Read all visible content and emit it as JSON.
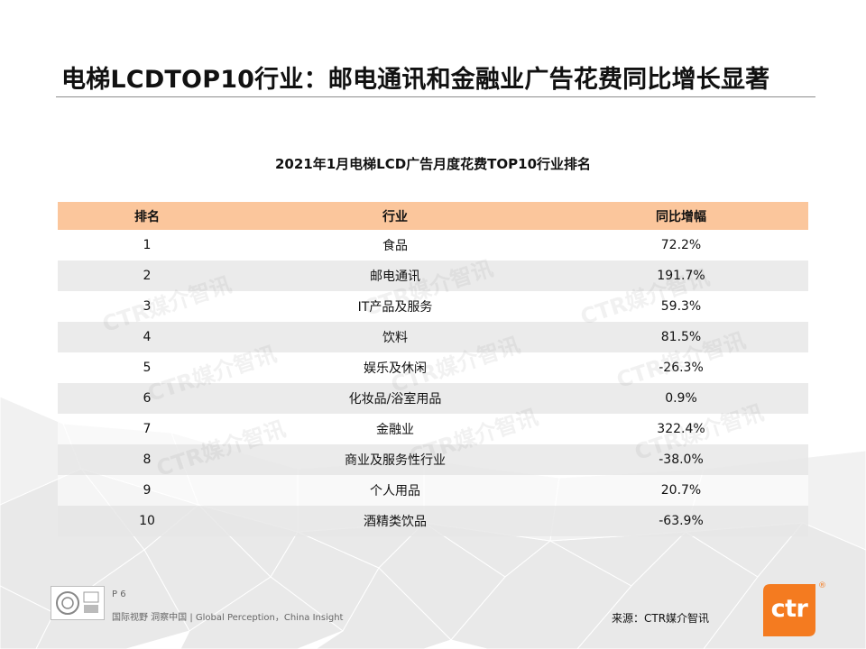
{
  "slide": {
    "title": "电梯LCDTOP10行业：邮电通讯和金融业广告花费同比增长显著",
    "table_caption": "2021年1月电梯LCD广告月度花费TOP10行业排名",
    "watermark": "CTR媒介智讯"
  },
  "table": {
    "headers": [
      "排名",
      "行业",
      "同比增幅"
    ],
    "rows": [
      {
        "rank": "1",
        "industry": "食品",
        "growth": "72.2%"
      },
      {
        "rank": "2",
        "industry": "邮电通讯",
        "growth": "191.7%"
      },
      {
        "rank": "3",
        "industry": "IT产品及服务",
        "growth": "59.3%"
      },
      {
        "rank": "4",
        "industry": "饮料",
        "growth": "81.5%"
      },
      {
        "rank": "5",
        "industry": "娱乐及休闲",
        "growth": "-26.3%"
      },
      {
        "rank": "6",
        "industry": "化妆品/浴室用品",
        "growth": "0.9%"
      },
      {
        "rank": "7",
        "industry": "金融业",
        "growth": "322.4%"
      },
      {
        "rank": "8",
        "industry": "商业及服务性行业",
        "growth": "-38.0%"
      },
      {
        "rank": "9",
        "industry": "个人用品",
        "growth": "20.7%"
      },
      {
        "rank": "10",
        "industry": "酒精类饮品",
        "growth": "-63.9%"
      }
    ]
  },
  "footer": {
    "page": "P 6",
    "tagline": "国际视野 洞察中国 | Global Perception，China Insight",
    "source": "来源：CTR媒介智讯",
    "logo_text": "ctr",
    "logo_mark": "®"
  },
  "colors": {
    "header_fill": "#fbc69c",
    "alt_row_fill": "#e6e6e6",
    "logo_orange": "#f47b20"
  }
}
